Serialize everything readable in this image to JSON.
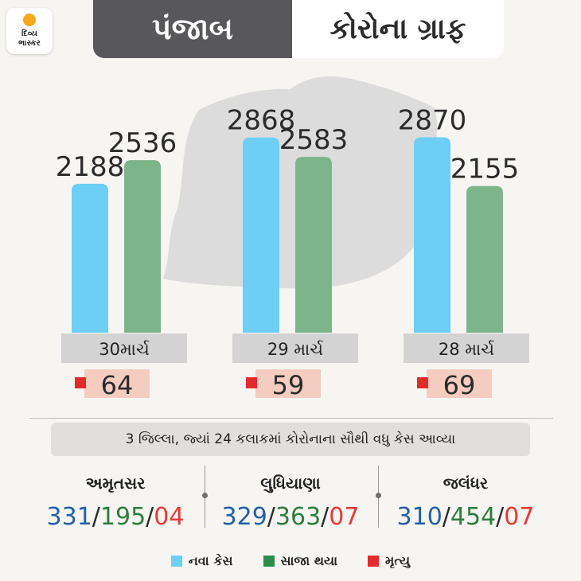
{
  "logo": {
    "line1": "દિવ્ય",
    "line2": "ભાસ્કર"
  },
  "header": {
    "state": "પંજાબ",
    "title": "કોરોના ગ્રાફ"
  },
  "colors": {
    "new_cases": "#6dcff6",
    "recovered": "#7db58b",
    "deaths": "#e32b2b"
  },
  "chart_data": {
    "type": "bar",
    "categories": [
      "30માર્ચ",
      "29 માર્ચ",
      "28 માર્ચ"
    ],
    "series": [
      {
        "name": "નવા કેસ",
        "values": [
          2188,
          2868,
          2870
        ]
      },
      {
        "name": "સાજા થયા",
        "values": [
          2536,
          2583,
          2155
        ]
      },
      {
        "name": "મૃત્યુ",
        "values": [
          64,
          59,
          69
        ]
      }
    ],
    "title": "કોરોના ગ્રાફ",
    "ylim": [
      0,
      3200
    ],
    "grid": false
  },
  "caption": "3 જિલ્લા, જ્યાં 24 કલાકમાં કોરોનાના સૌથી વધુ કેસ આવ્યા",
  "districts": [
    {
      "name": "અમૃતસર",
      "new": "331",
      "recovered": "195",
      "deaths": "04"
    },
    {
      "name": "લુધિયાણા",
      "new": "329",
      "recovered": "363",
      "deaths": "07"
    },
    {
      "name": "જલંધર",
      "new": "310",
      "recovered": "454",
      "deaths": "07"
    }
  ],
  "stat_separator": "/",
  "legend": [
    {
      "label": "નવા કેસ",
      "color": "#6dcff6"
    },
    {
      "label": "સાજા થયા",
      "color": "#2e8b4e"
    },
    {
      "label": "મૃત્યુ",
      "color": "#e32b2b"
    }
  ]
}
